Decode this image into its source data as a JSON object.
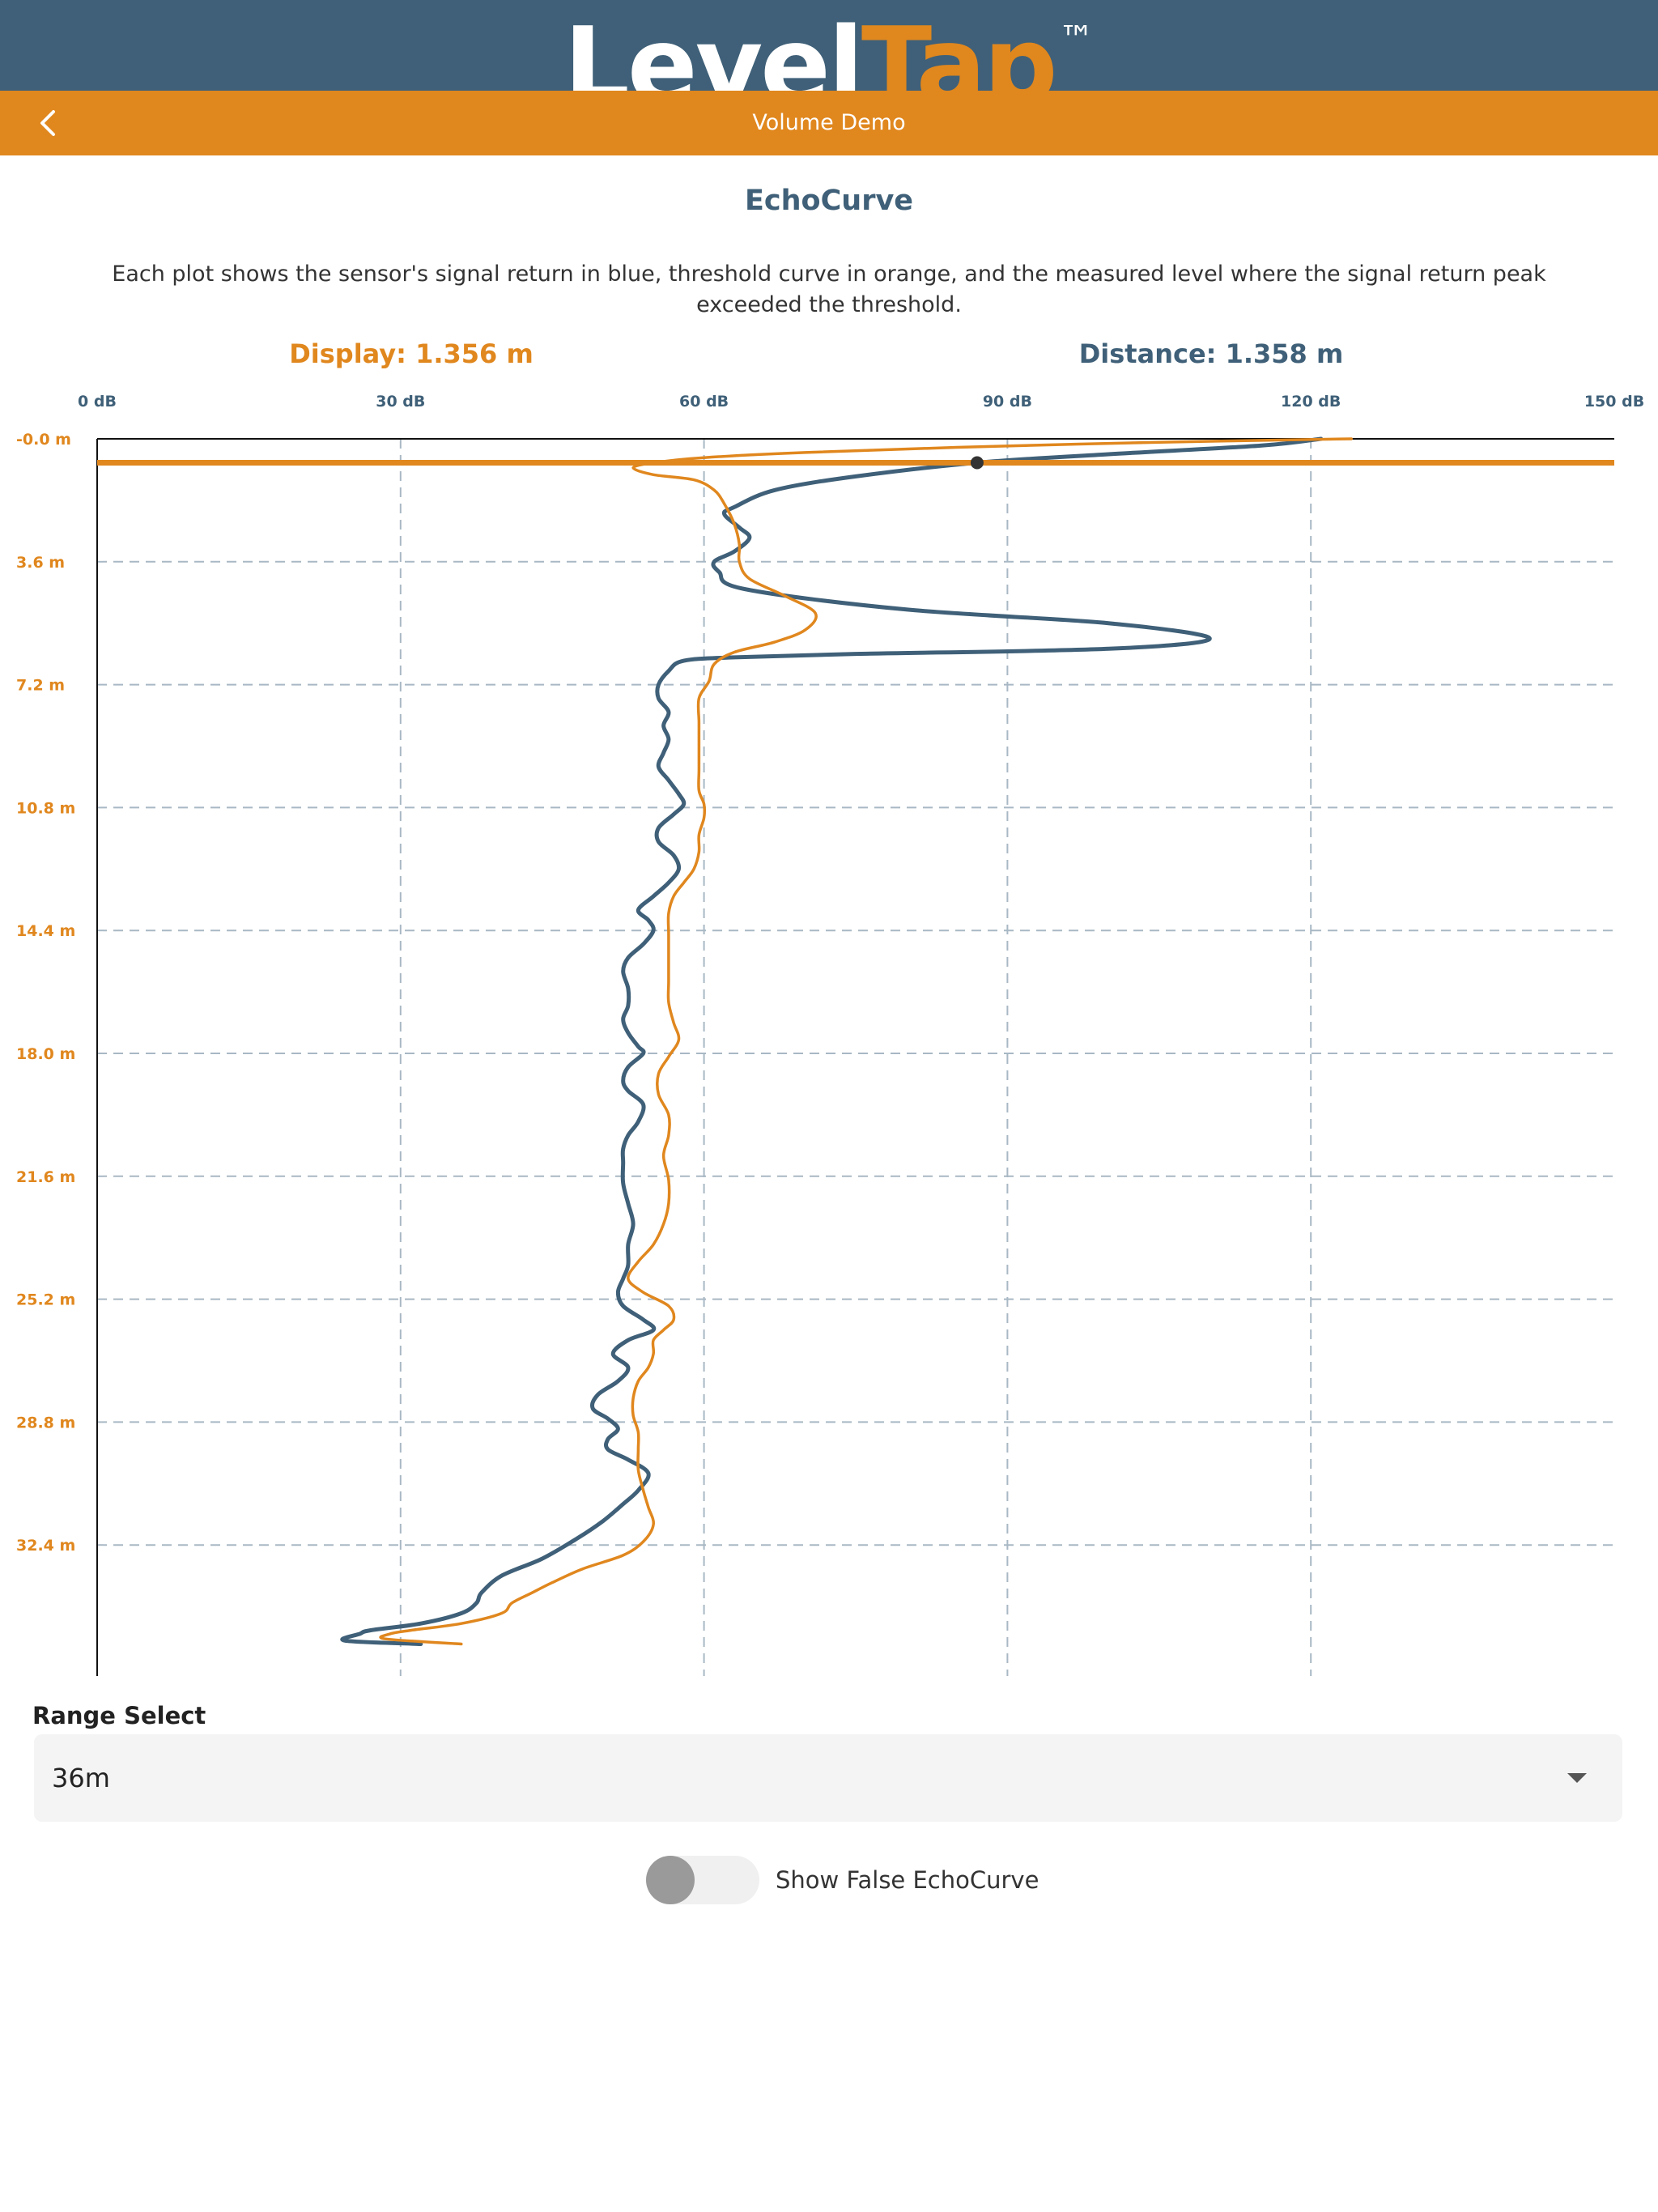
{
  "brand": {
    "logo_part1": "Level",
    "logo_part2": "Tap",
    "logo_tm": "™"
  },
  "nav": {
    "title": "Volume Demo",
    "back_icon": "chevron-left-icon"
  },
  "section": {
    "title": "EchoCurve",
    "description": "Each plot shows the sensor's signal return in blue, threshold curve in orange, and the measured level where the signal return peak exceeded the threshold."
  },
  "readouts": {
    "display": "Display: 1.356 m",
    "distance": "Distance: 1.358 m"
  },
  "colors": {
    "brand_blue": "#3f6078",
    "brand_orange": "#e0871e",
    "grid": "#a8b8c4"
  },
  "chart_data": {
    "type": "line",
    "orientation": "vertical-depth",
    "x_ticks": [
      "0 dB",
      "30 dB",
      "60 dB",
      "90 dB",
      "120 dB",
      "150 dB"
    ],
    "y_ticks": [
      "-0.0 m",
      "3.6 m",
      "7.2 m",
      "10.8 m",
      "14.4 m",
      "18.0 m",
      "21.6 m",
      "25.2 m",
      "28.8 m",
      "32.4 m"
    ],
    "xlim": [
      0,
      150
    ],
    "ylim": [
      0,
      36
    ],
    "grid": true,
    "measured_level_m": 0.7,
    "level_marker": {
      "x": 87,
      "y": 0.7
    },
    "series": [
      {
        "name": "signal return",
        "color": "#3f6078",
        "points": [
          [
            121,
            0.0
          ],
          [
            115,
            0.2
          ],
          [
            100,
            0.45
          ],
          [
            87,
            0.7
          ],
          [
            75,
            1.1
          ],
          [
            67,
            1.5
          ],
          [
            63,
            2.0
          ],
          [
            62,
            2.2
          ],
          [
            63.5,
            2.6
          ],
          [
            64.5,
            2.9
          ],
          [
            63,
            3.3
          ],
          [
            61,
            3.6
          ],
          [
            61.5,
            3.9
          ],
          [
            64,
            4.4
          ],
          [
            80,
            5.0
          ],
          [
            100,
            5.4
          ],
          [
            110,
            5.85
          ],
          [
            100,
            6.15
          ],
          [
            75,
            6.3
          ],
          [
            63,
            6.4
          ],
          [
            58,
            6.5
          ],
          [
            56.5,
            6.8
          ],
          [
            55.5,
            7.2
          ],
          [
            55.5,
            7.6
          ],
          [
            56.5,
            8.0
          ],
          [
            56,
            8.4
          ],
          [
            56.5,
            8.8
          ],
          [
            56,
            9.2
          ],
          [
            55.5,
            9.6
          ],
          [
            56.5,
            10.0
          ],
          [
            57.5,
            10.4
          ],
          [
            58,
            10.7
          ],
          [
            57,
            11.0
          ],
          [
            55.5,
            11.4
          ],
          [
            55.5,
            11.8
          ],
          [
            57,
            12.2
          ],
          [
            57.5,
            12.6
          ],
          [
            56.5,
            13.0
          ],
          [
            55,
            13.4
          ],
          [
            53.5,
            13.8
          ],
          [
            54.5,
            14.1
          ],
          [
            55,
            14.4
          ],
          [
            54,
            14.8
          ],
          [
            52.5,
            15.2
          ],
          [
            52,
            15.6
          ],
          [
            52.5,
            16.1
          ],
          [
            52.5,
            16.6
          ],
          [
            52,
            17.0
          ],
          [
            52.5,
            17.4
          ],
          [
            53.5,
            17.8
          ],
          [
            54,
            18.0
          ],
          [
            52.5,
            18.4
          ],
          [
            52,
            18.8
          ],
          [
            52.5,
            19.1
          ],
          [
            54,
            19.5
          ],
          [
            53.5,
            20.0
          ],
          [
            52.5,
            20.4
          ],
          [
            52,
            20.8
          ],
          [
            52,
            21.2
          ],
          [
            52,
            21.8
          ],
          [
            52.5,
            22.4
          ],
          [
            53,
            23.0
          ],
          [
            52.5,
            23.6
          ],
          [
            52.5,
            24.2
          ],
          [
            52,
            24.6
          ],
          [
            51.5,
            25.0
          ],
          [
            52,
            25.4
          ],
          [
            54,
            25.8
          ],
          [
            55,
            26.1
          ],
          [
            52.5,
            26.4
          ],
          [
            51,
            26.8
          ],
          [
            52.5,
            27.2
          ],
          [
            51.5,
            27.6
          ],
          [
            49.5,
            28.0
          ],
          [
            49,
            28.4
          ],
          [
            50.5,
            28.7
          ],
          [
            51.5,
            29.0
          ],
          [
            50.5,
            29.3
          ],
          [
            50.5,
            29.6
          ],
          [
            52.5,
            29.9
          ],
          [
            54.5,
            30.3
          ],
          [
            53.5,
            30.8
          ],
          [
            52,
            31.2
          ],
          [
            50,
            31.7
          ],
          [
            47.5,
            32.2
          ],
          [
            44,
            32.8
          ],
          [
            40,
            33.3
          ],
          [
            38,
            33.8
          ],
          [
            37.5,
            34.1
          ],
          [
            36,
            34.4
          ],
          [
            32,
            34.7
          ],
          [
            27,
            34.9
          ],
          [
            26,
            35.0
          ],
          [
            24.5,
            35.2
          ],
          [
            32,
            35.3
          ]
        ]
      },
      {
        "name": "threshold",
        "color": "#e0871e",
        "points": [
          [
            124,
            0.0
          ],
          [
            105,
            0.1
          ],
          [
            85,
            0.25
          ],
          [
            70,
            0.4
          ],
          [
            60,
            0.55
          ],
          [
            55,
            0.7
          ],
          [
            53,
            0.85
          ],
          [
            55,
            1.05
          ],
          [
            59,
            1.2
          ],
          [
            61,
            1.5
          ],
          [
            62,
            1.9
          ],
          [
            63,
            2.5
          ],
          [
            63.5,
            3.1
          ],
          [
            63.5,
            3.6
          ],
          [
            64.5,
            4.1
          ],
          [
            68,
            4.6
          ],
          [
            71,
            5.1
          ],
          [
            70,
            5.6
          ],
          [
            67,
            5.95
          ],
          [
            63,
            6.25
          ],
          [
            61,
            6.6
          ],
          [
            60.5,
            7.1
          ],
          [
            59.5,
            7.6
          ],
          [
            59.5,
            8.3
          ],
          [
            59.5,
            9.0
          ],
          [
            59.5,
            9.7
          ],
          [
            59.5,
            10.3
          ],
          [
            60,
            10.7
          ],
          [
            60,
            11.1
          ],
          [
            59.5,
            11.6
          ],
          [
            59.5,
            12.1
          ],
          [
            59,
            12.6
          ],
          [
            58,
            13.0
          ],
          [
            57,
            13.4
          ],
          [
            56.5,
            13.9
          ],
          [
            56.5,
            14.5
          ],
          [
            56.5,
            15.2
          ],
          [
            56.5,
            15.9
          ],
          [
            56.5,
            16.5
          ],
          [
            57,
            17.1
          ],
          [
            57.5,
            17.6
          ],
          [
            56.5,
            18.1
          ],
          [
            55.5,
            18.6
          ],
          [
            55.5,
            19.2
          ],
          [
            56.5,
            19.8
          ],
          [
            56.5,
            20.4
          ],
          [
            56,
            21.0
          ],
          [
            56.5,
            21.7
          ],
          [
            56.5,
            22.4
          ],
          [
            56,
            23.0
          ],
          [
            55,
            23.6
          ],
          [
            53.5,
            24.1
          ],
          [
            52.5,
            24.6
          ],
          [
            54,
            25.0
          ],
          [
            56.5,
            25.4
          ],
          [
            57,
            25.8
          ],
          [
            56,
            26.1
          ],
          [
            55,
            26.4
          ],
          [
            55,
            26.8
          ],
          [
            54.5,
            27.2
          ],
          [
            53.5,
            27.6
          ],
          [
            53,
            28.1
          ],
          [
            53,
            28.6
          ],
          [
            53.5,
            29.1
          ],
          [
            53.5,
            29.6
          ],
          [
            53.5,
            30.2
          ],
          [
            54,
            30.8
          ],
          [
            54.5,
            31.3
          ],
          [
            55,
            31.8
          ],
          [
            54,
            32.3
          ],
          [
            52,
            32.7
          ],
          [
            48,
            33.1
          ],
          [
            45,
            33.5
          ],
          [
            43,
            33.8
          ],
          [
            41,
            34.1
          ],
          [
            40,
            34.4
          ],
          [
            36,
            34.7
          ],
          [
            31,
            34.9
          ],
          [
            29,
            35.0
          ],
          [
            28.5,
            35.15
          ],
          [
            36,
            35.3
          ]
        ]
      }
    ]
  },
  "range_select": {
    "label": "Range Select",
    "value": "36m"
  },
  "toggle": {
    "label": "Show False EchoCurve",
    "on": false
  }
}
